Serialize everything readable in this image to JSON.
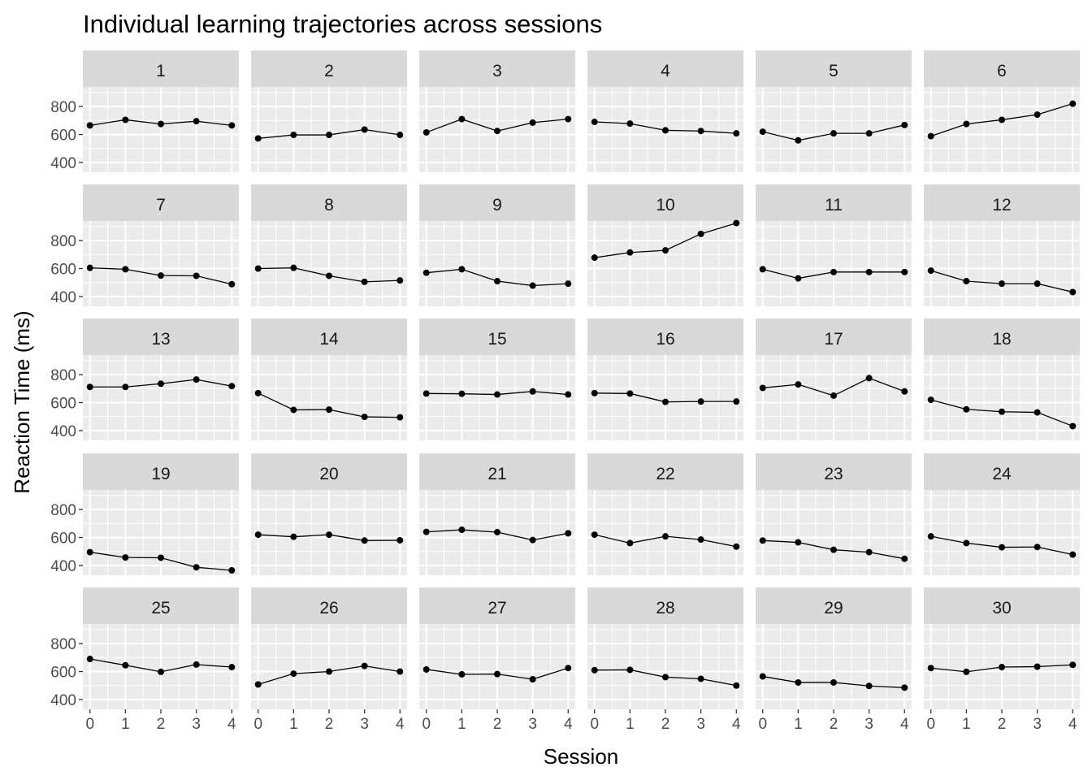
{
  "chart_data": {
    "type": "line",
    "title": "Individual learning trajectories across sessions",
    "xlabel": "Session",
    "ylabel": "Reaction Time (ms)",
    "x": [
      0,
      1,
      2,
      3,
      4
    ],
    "x_ticks": [
      0,
      1,
      2,
      3,
      4
    ],
    "y_ticks": [
      400,
      600,
      800
    ],
    "ylim": [
      330,
      940
    ],
    "xlim": [
      -0.2,
      4.2
    ],
    "facet_layout": "5 rows x 6 columns",
    "grid": true,
    "colors": {
      "panel_bg": "#ebebeb",
      "strip_bg": "#d9d9d9",
      "grid": "#ffffff",
      "series": "#000000",
      "tick_label": "#4d4d4d"
    },
    "panels": [
      {
        "label": "1",
        "values": [
          665,
          705,
          675,
          695,
          665
        ]
      },
      {
        "label": "2",
        "values": [
          572,
          597,
          597,
          635,
          597
        ]
      },
      {
        "label": "3",
        "values": [
          615,
          710,
          625,
          685,
          710
        ]
      },
      {
        "label": "4",
        "values": [
          690,
          678,
          630,
          625,
          608
        ]
      },
      {
        "label": "5",
        "values": [
          620,
          558,
          608,
          608,
          668
        ]
      },
      {
        "label": "6",
        "values": [
          588,
          675,
          705,
          742,
          820
        ]
      },
      {
        "label": "7",
        "values": [
          605,
          595,
          550,
          548,
          488
        ]
      },
      {
        "label": "8",
        "values": [
          600,
          605,
          548,
          505,
          515
        ]
      },
      {
        "label": "9",
        "values": [
          570,
          595,
          510,
          478,
          492
        ]
      },
      {
        "label": "10",
        "values": [
          678,
          715,
          730,
          848,
          925
        ]
      },
      {
        "label": "11",
        "values": [
          595,
          530,
          575,
          575,
          575
        ]
      },
      {
        "label": "12",
        "values": [
          585,
          510,
          492,
          492,
          432
        ]
      },
      {
        "label": "13",
        "values": [
          712,
          712,
          735,
          765,
          718
        ]
      },
      {
        "label": "14",
        "values": [
          668,
          548,
          550,
          498,
          495
        ]
      },
      {
        "label": "15",
        "values": [
          665,
          663,
          658,
          680,
          658
        ]
      },
      {
        "label": "16",
        "values": [
          668,
          665,
          605,
          608,
          608
        ]
      },
      {
        "label": "17",
        "values": [
          705,
          730,
          650,
          775,
          680
        ]
      },
      {
        "label": "18",
        "values": [
          620,
          552,
          535,
          530,
          432
        ]
      },
      {
        "label": "19",
        "values": [
          495,
          457,
          455,
          387,
          365
        ]
      },
      {
        "label": "20",
        "values": [
          620,
          605,
          620,
          578,
          580
        ]
      },
      {
        "label": "21",
        "values": [
          640,
          655,
          638,
          582,
          630
        ]
      },
      {
        "label": "22",
        "values": [
          620,
          560,
          608,
          585,
          535
        ]
      },
      {
        "label": "23",
        "values": [
          578,
          565,
          512,
          495,
          448
        ]
      },
      {
        "label": "24",
        "values": [
          608,
          560,
          530,
          532,
          478
        ]
      },
      {
        "label": "25",
        "values": [
          690,
          645,
          598,
          650,
          632
        ]
      },
      {
        "label": "26",
        "values": [
          508,
          585,
          600,
          640,
          600
        ]
      },
      {
        "label": "27",
        "values": [
          615,
          580,
          582,
          545,
          625
        ]
      },
      {
        "label": "28",
        "values": [
          610,
          612,
          560,
          548,
          500
        ]
      },
      {
        "label": "29",
        "values": [
          565,
          522,
          522,
          497,
          485
        ]
      },
      {
        "label": "30",
        "values": [
          625,
          598,
          632,
          635,
          648
        ]
      }
    ]
  }
}
